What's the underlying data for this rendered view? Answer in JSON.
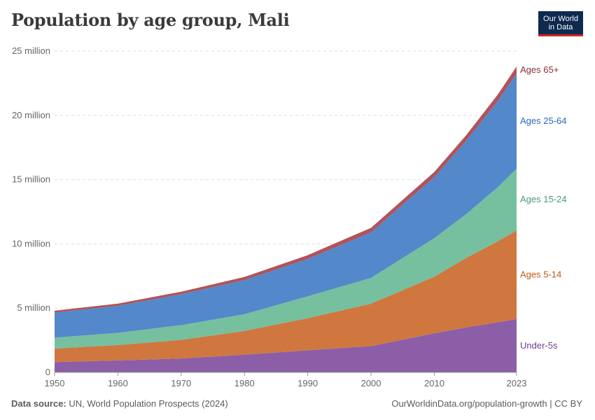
{
  "title": "Population by age group, Mali",
  "logo": {
    "line1": "Our World",
    "line2": "in Data"
  },
  "footer": {
    "source_label": "Data source:",
    "source_text": "UN, World Population Prospects (2024)",
    "url_text": "OurWorldinData.org/population-growth | CC BY"
  },
  "colors": {
    "under5": "#8c5ea8",
    "age5_14": "#d0773f",
    "age15_24": "#76c09f",
    "age25_64": "#5388cb",
    "age65": "#b0535b",
    "label_under5": "#6d3e91",
    "label_5_14": "#c05917",
    "label_15_24": "#4c9a76",
    "label_25_64": "#2b6ab5",
    "label_65": "#883039"
  },
  "chart_data": {
    "type": "area",
    "stacked": true,
    "title": "Population by age group, Mali",
    "x_tick_labels": [
      "1950",
      "1960",
      "1970",
      "1980",
      "1990",
      "2000",
      "2010",
      "2023"
    ],
    "y_tick_labels": [
      "0",
      "5 million",
      "10 million",
      "15 million",
      "20 million",
      "25 million"
    ],
    "y_ticks": [
      0,
      5000000,
      10000000,
      15000000,
      20000000,
      25000000
    ],
    "ylim": [
      0,
      25000000
    ],
    "xlim": [
      1950,
      2023
    ],
    "grid": "horizontal dashed",
    "legend": "inline labels at right end",
    "x": [
      1950,
      1960,
      1970,
      1980,
      1990,
      2000,
      2010,
      2015,
      2020,
      2023
    ],
    "series": [
      {
        "name": "Under-5s",
        "color_key": "under5",
        "label_color_key": "label_under5",
        "values": [
          800000,
          930000,
          1080000,
          1380000,
          1720000,
          2050000,
          3050000,
          3500000,
          3900000,
          4150000
        ]
      },
      {
        "name": "Ages 5-14",
        "color_key": "age5_14",
        "label_color_key": "label_5_14",
        "values": [
          1050000,
          1200000,
          1450000,
          1850000,
          2500000,
          3300000,
          4400000,
          5400000,
          6300000,
          6900000
        ]
      },
      {
        "name": "Ages 15-24",
        "color_key": "age15_24",
        "label_color_key": "label_15_24",
        "values": [
          850000,
          950000,
          1150000,
          1300000,
          1700000,
          2000000,
          3000000,
          3400000,
          4200000,
          4800000
        ]
      },
      {
        "name": "Ages 25-64",
        "color_key": "age25_64",
        "label_color_key": "label_25_64",
        "values": [
          1950000,
          2100000,
          2400000,
          2650000,
          2900000,
          3550000,
          4750000,
          5700000,
          6700000,
          7400000
        ]
      },
      {
        "name": "Ages 65+",
        "color_key": "age65",
        "label_color_key": "label_65",
        "values": [
          150000,
          170000,
          200000,
          250000,
          300000,
          350000,
          400000,
          440000,
          500000,
          550000
        ]
      }
    ]
  }
}
